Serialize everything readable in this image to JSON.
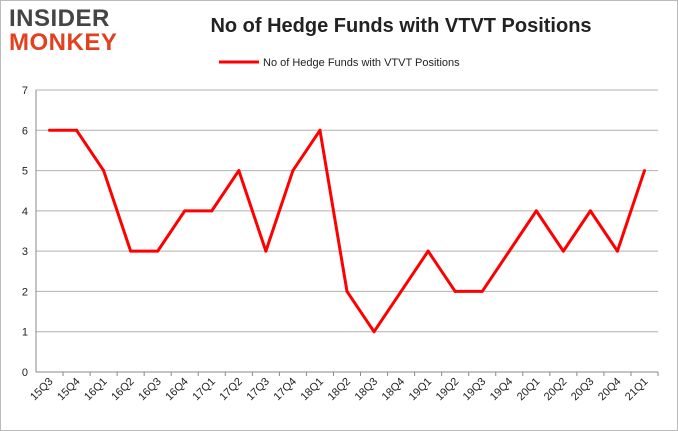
{
  "logo": {
    "line1": "INSIDER",
    "line2": "MONKEY"
  },
  "chart_data": {
    "type": "line",
    "title": "No of Hedge Funds with VTVT Positions",
    "categories": [
      "15Q3",
      "15Q4",
      "16Q1",
      "16Q2",
      "16Q3",
      "16Q4",
      "17Q1",
      "17Q2",
      "17Q3",
      "17Q4",
      "18Q1",
      "18Q2",
      "18Q3",
      "18Q4",
      "19Q1",
      "19Q2",
      "19Q3",
      "19Q4",
      "20Q1",
      "20Q2",
      "20Q3",
      "20Q4",
      "21Q1"
    ],
    "series": [
      {
        "name": "No of Hedge Funds with VTVT Positions",
        "values": [
          6,
          6,
          5,
          3,
          3,
          4,
          4,
          5,
          3,
          5,
          6,
          2,
          1,
          2,
          3,
          2,
          2,
          3,
          4,
          3,
          4,
          3,
          5
        ],
        "color": "#ff0000"
      }
    ],
    "ylim": [
      0,
      7
    ],
    "yticks": [
      0,
      1,
      2,
      3,
      4,
      5,
      6,
      7
    ],
    "grid": true,
    "legend": "top-center"
  }
}
